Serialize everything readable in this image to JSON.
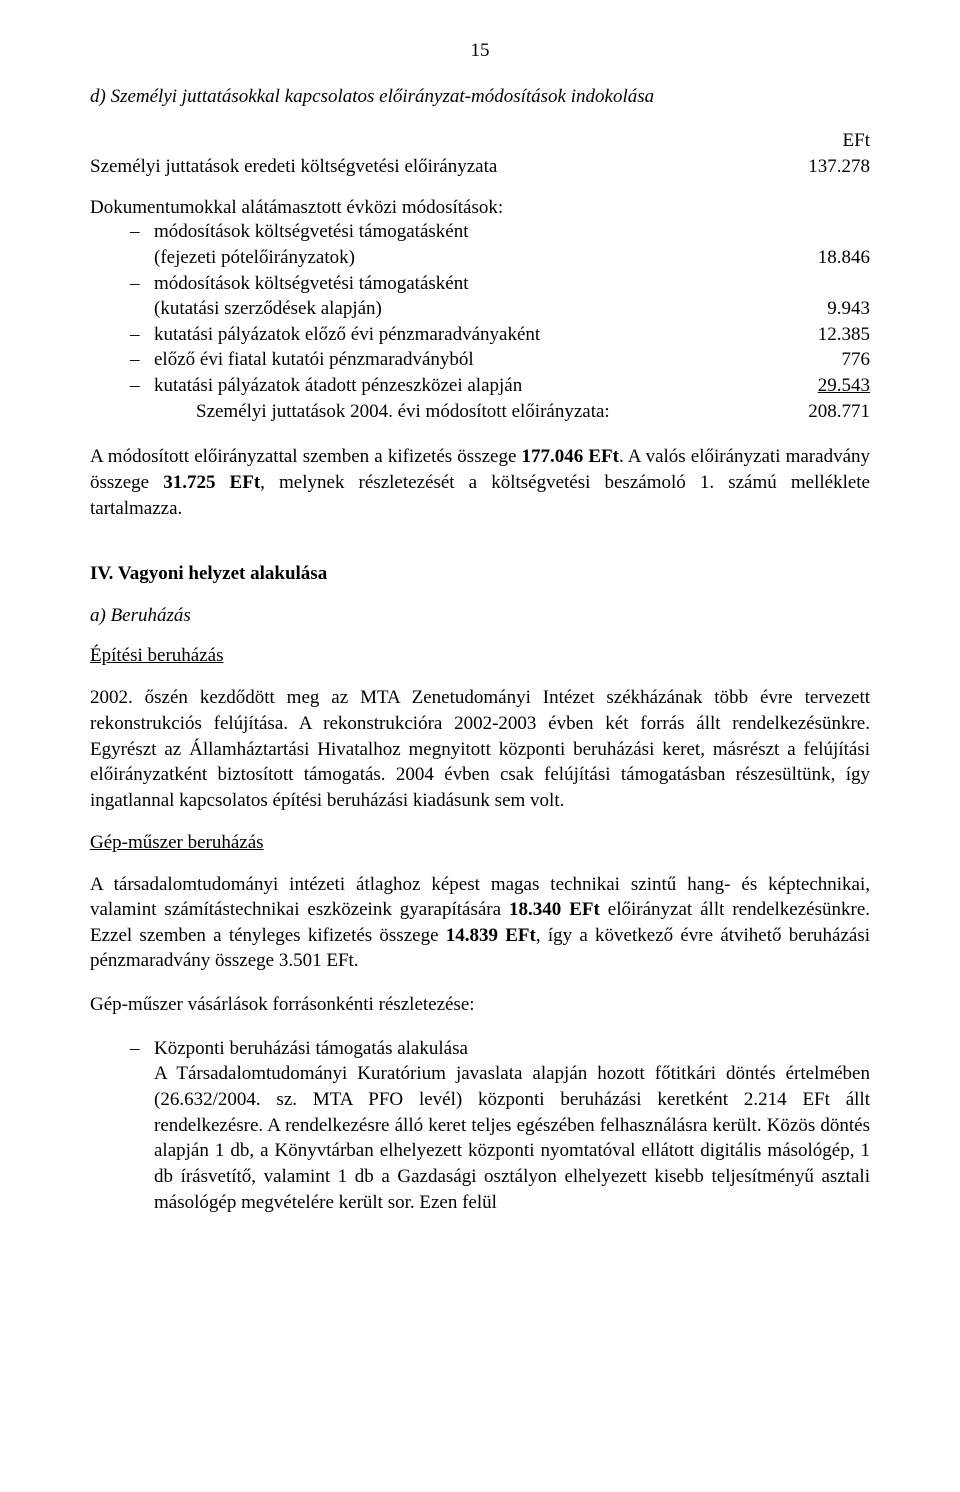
{
  "pageNumber": "15",
  "headingD": "d) Személyi juttatásokkal kapcsolatos előirányzat-módosítások indokolása",
  "eftLabel": "EFt",
  "row1": {
    "label": "Személyi juttatások eredeti költségvetési előirányzata",
    "value": "137.278"
  },
  "docIntro": "Dokumentumokkal alátámasztott évközi módosítások:",
  "b1": {
    "text": "módosítások költségvetési támogatásként",
    "sub": "(fejezeti pótelőirányzatok)",
    "value": "18.846"
  },
  "b2": {
    "text": "módosítások költségvetési támogatásként",
    "sub": "(kutatási szerződések alapján)",
    "value": "9.943"
  },
  "b3": {
    "text": "kutatási pályázatok előző évi pénzmaradványaként",
    "value": "12.385"
  },
  "b4": {
    "text": "előző évi fiatal kutatói pénzmaradványból",
    "value": "776"
  },
  "b5": {
    "text": "kutatási pályázatok átadott pénzeszközei alapján",
    "value": " 29.543"
  },
  "summary": {
    "label": "Személyi juttatások 2004. évi módosított előirányzata:",
    "value": "208.771"
  },
  "para1_a": "A módosított előirányzattal szemben a kifizetés összege ",
  "para1_b": "177.046 EFt",
  "para1_c": ". A valós előirányzati maradvány összege ",
  "para1_d": "31.725 EFt",
  "para1_e": ", melynek részletezését a költségvetési beszámoló 1. számú melléklete tartalmazza.",
  "sectionIV": "IV. Vagyoni helyzet alakulása",
  "aBeruhazas": "a) Beruházás",
  "epitesi": "Építési beruházás",
  "epitesiPara": "2002. őszén kezdődött meg az MTA Zenetudományi Intézet székházának több évre tervezett rekonstrukciós felújítása. A rekonstrukcióra 2002-2003 évben két forrás állt rendelkezésünkre. Egyrészt az Államháztartási Hivatalhoz megnyitott központi beruházási keret, másrészt a felújítási előirányzatként biztosított támogatás. 2004 évben csak felújítási támogatásban részesültünk, így ingatlannal kapcsolatos építési beruházási kiadásunk sem volt.",
  "gepmuszer": "Gép-műszer beruházás",
  "gepPara_a": "A társadalomtudományi intézeti átlaghoz képest magas technikai szintű hang- és képtechnikai, valamint számítástechnikai eszközeink gyarapítására ",
  "gepPara_b": "18.340 EFt",
  "gepPara_c": " előirányzat állt rendelkezésünkre. Ezzel szemben a tényleges kifizetés összege ",
  "gepPara_d": "14.839 EFt",
  "gepPara_e": ", így a következő évre átvihető beruházási pénzmaradvány összege 3.501 EFt.",
  "gepReszlet": "Gép-műszer vásárlások forrásonkénti részletezése:",
  "li1_head": "Központi beruházási támogatás alakulása",
  "li1_body": "A Társadalomtudományi Kuratórium javaslata alapján hozott főtitkári döntés értelmében (26.632/2004. sz. MTA PFO levél) központi beruházási keretként 2.214 EFt állt rendelkezésre. A rendelkezésre álló keret teljes egészében felhasználásra került. Közös döntés alapján 1 db, a Könyvtárban elhelyezett központi nyomtatóval ellátott digitális másológép, 1 db írásvetítő, valamint 1 db a Gazdasági osztályon elhelyezett kisebb teljesítményű asztali másológép megvételére került sor. Ezen felül"
}
